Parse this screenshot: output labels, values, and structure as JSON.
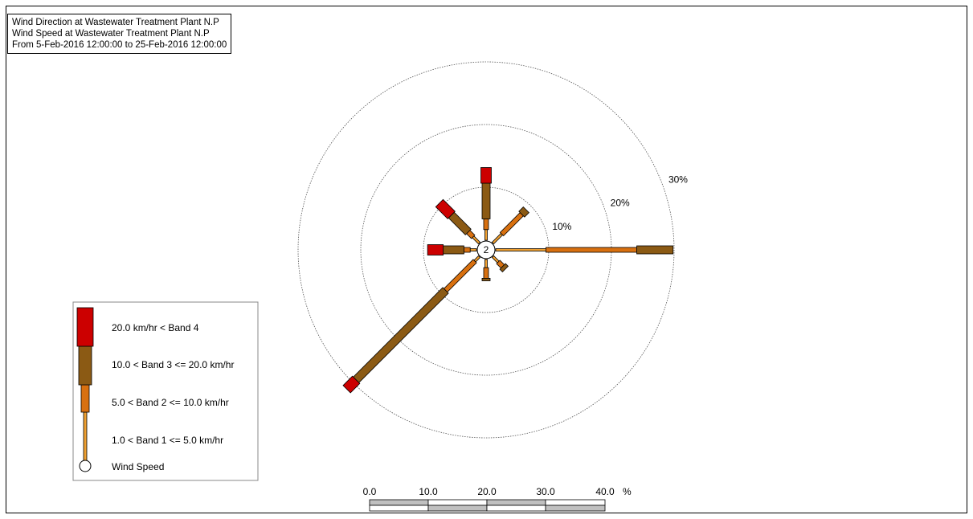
{
  "chart_data": {
    "type": "wind-rose",
    "title_lines": [
      "Wind Direction at Wastewater Treatment Plant N.P",
      "Wind Speed at Wastewater Treatment Plant N.P",
      "From  5-Feb-2016 12:00:00 to 25-Feb-2016 12:00:00"
    ],
    "center_label": "2",
    "ring_values": [
      10,
      20,
      30
    ],
    "ring_labels": [
      "10%",
      "20%",
      "30%"
    ],
    "rmax_percent": 30,
    "band_colors": [
      "#f0a030",
      "#d8700f",
      "#8b5a14",
      "#cc0000"
    ],
    "directions": [
      {
        "angle": 0,
        "bands": [
          1.7,
          1.7,
          5.7,
          2.5
        ]
      },
      {
        "angle": 45,
        "bands": [
          2.0,
          4.5,
          1.0,
          0
        ]
      },
      {
        "angle": 90,
        "bands": [
          8.0,
          14.5,
          5.8,
          0
        ]
      },
      {
        "angle": 135,
        "bands": [
          1.2,
          1.0,
          0.6,
          0
        ]
      },
      {
        "angle": 180,
        "bands": [
          1.3,
          1.7,
          0.4,
          0
        ]
      },
      {
        "angle": 225,
        "bands": [
          1.0,
          6.6,
          20.2,
          2.1
        ]
      },
      {
        "angle": 270,
        "bands": [
          1.0,
          1.0,
          3.3,
          2.5
        ]
      },
      {
        "angle": 315,
        "bands": [
          1.4,
          1.1,
          3.8,
          2.7
        ]
      }
    ],
    "legend": {
      "entries": [
        "20.0 km/hr < Band 4",
        "10.0 < Band 3 <= 20.0 km/hr",
        "5.0 < Band 2 <= 10.0 km/hr",
        "1.0 < Band 1 <= 5.0 km/hr",
        "Wind Speed"
      ]
    },
    "scale": {
      "ticks": [
        "0.0",
        "10.0",
        "20.0",
        "30.0",
        "40.0"
      ],
      "unit": "%"
    }
  }
}
